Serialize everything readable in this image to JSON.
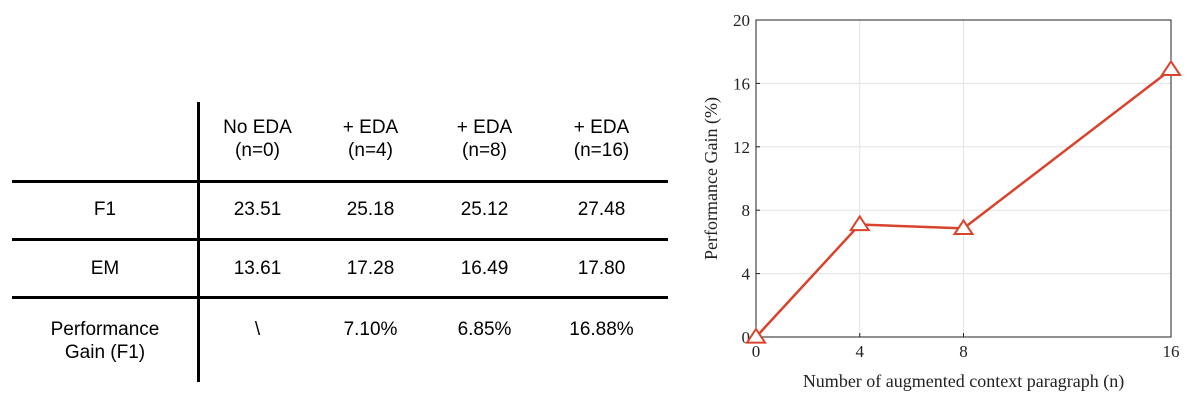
{
  "table": {
    "columns": [
      {
        "label": "No EDA\n(n=0)"
      },
      {
        "label": "+  EDA\n(n=4)"
      },
      {
        "label": "+ EDA\n(n=8)"
      },
      {
        "label": "+ EDA\n(n=16)"
      }
    ],
    "rows": [
      {
        "label": "F1",
        "cells": [
          "23.51",
          "25.18",
          "25.12",
          "27.48"
        ]
      },
      {
        "label": "EM",
        "cells": [
          "13.61",
          "17.28",
          "16.49",
          "17.80"
        ]
      },
      {
        "label": "Performance\nGain (F1)",
        "cells": [
          "\\",
          "7.10%",
          "6.85%",
          "16.88%"
        ]
      }
    ]
  },
  "chart_data": {
    "type": "line",
    "xlabel": "Number of augmented context paragraph (n)",
    "ylabel": "Performance Gain (%)",
    "x": [
      0,
      4,
      8,
      16
    ],
    "series": [
      {
        "values": [
          0,
          7.1,
          6.85,
          16.88
        ],
        "color": "#d9432b",
        "marker": "triangle"
      }
    ],
    "xticks": [
      0,
      4,
      8,
      16
    ],
    "yticks": [
      0,
      4,
      8,
      12,
      16,
      20
    ],
    "xlim": [
      0,
      16
    ],
    "ylim": [
      0,
      20
    ],
    "grid": true
  }
}
